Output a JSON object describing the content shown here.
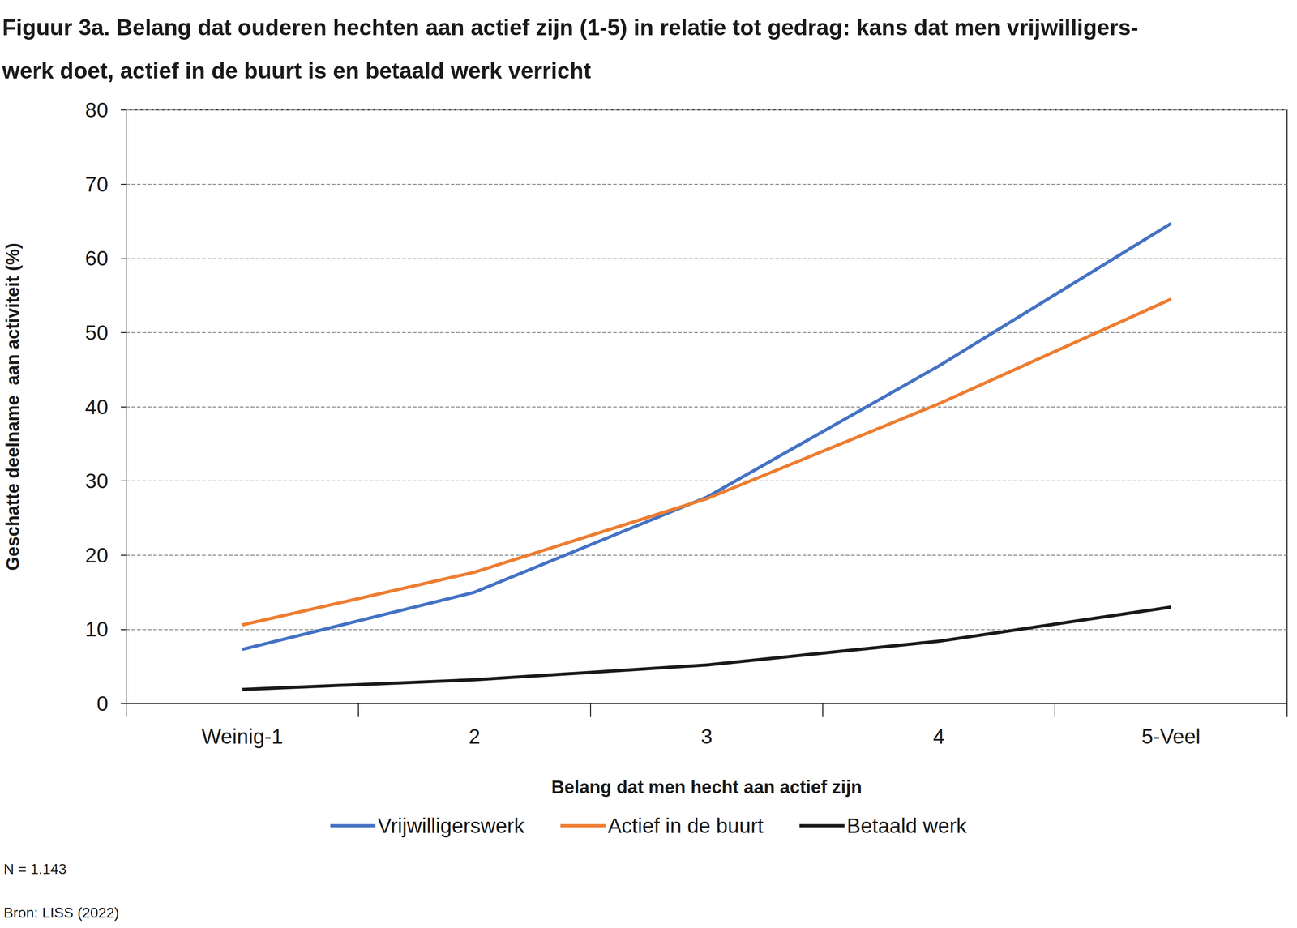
{
  "chart_data": {
    "type": "line",
    "title": "Figuur 3a. Belang dat ouderen hechten aan actief zijn (1-5) in relatie tot gedrag: kans dat men vrijwilligers-\nwerk doet, actief in de buurt is en betaald werk verricht",
    "x_label": "Belang dat men hecht aan actief zijn",
    "y_label": "Geschatte deelname  aan activiteit (%)",
    "categories": [
      "Weinig-1",
      "2",
      "3",
      "4",
      "5-Veel"
    ],
    "series": [
      {
        "name": "Vrijwilligerswerk",
        "color": "#4472c4",
        "values": [
          7.3,
          15.0,
          27.8,
          45.5,
          64.7
        ]
      },
      {
        "name": "Actief in de buurt",
        "color": "#ed7d31",
        "values": [
          10.6,
          17.7,
          27.6,
          40.4,
          54.5
        ]
      },
      {
        "name": "Betaald werk",
        "color": "#1a1a1a",
        "values": [
          1.9,
          3.2,
          5.2,
          8.4,
          13.0
        ]
      }
    ],
    "ylim": [
      0,
      80
    ],
    "yticks": [
      0,
      10,
      20,
      30,
      40,
      50,
      60,
      70,
      80
    ],
    "grid": true,
    "legend": "bottom",
    "annotations": [
      "N = 1.143",
      "Bron: LISS (2022)"
    ]
  }
}
